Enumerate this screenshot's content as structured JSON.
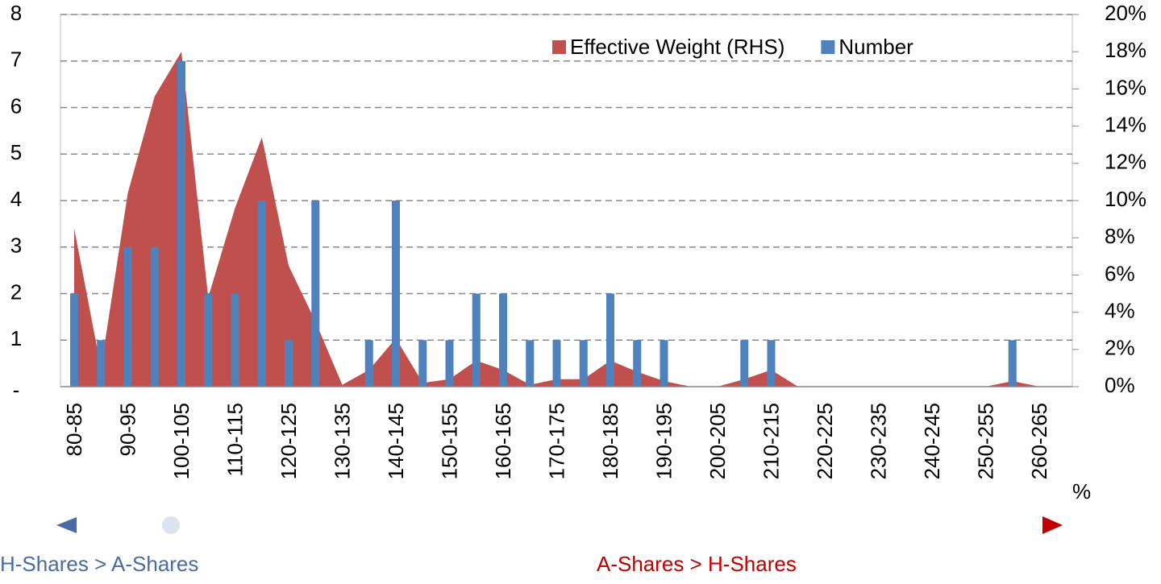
{
  "chart_data": {
    "type": "bar",
    "categories": [
      "80-85",
      null,
      "90-95",
      null,
      "100-105",
      null,
      "110-115",
      null,
      "120-125",
      null,
      "130-135",
      null,
      "140-145",
      null,
      "150-155",
      null,
      "160-165",
      null,
      "170-175",
      null,
      "180-185",
      null,
      "190-195",
      null,
      "200-205",
      null,
      "210-215",
      null,
      "220-225",
      null,
      "230-235",
      null,
      "240-245",
      null,
      "250-255",
      null,
      "260-265"
    ],
    "series": [
      {
        "name": "Effective Weight (RHS)",
        "color": "#c0504d",
        "type": "area",
        "axis": "y2",
        "values": [
          8.5,
          1,
          10.4,
          15.6,
          18,
          4.8,
          9.6,
          13.4,
          6.5,
          3.5,
          0.1,
          0.9,
          2.6,
          0.2,
          0.4,
          1.4,
          0.9,
          0.1,
          0.4,
          0.4,
          1.4,
          0.8,
          0.3,
          0,
          0,
          0.4,
          0.9,
          0,
          0,
          0,
          0,
          0,
          0,
          0,
          0,
          0.3,
          0
        ]
      },
      {
        "name": "Number",
        "color": "#4f81bd",
        "type": "bar",
        "axis": "y",
        "values": [
          2,
          1,
          3,
          3,
          7,
          2,
          2,
          4,
          1,
          4,
          0,
          1,
          4,
          1,
          1,
          2,
          2,
          1,
          1,
          1,
          2,
          1,
          1,
          0,
          0,
          1,
          1,
          0,
          0,
          0,
          0,
          0,
          0,
          0,
          0,
          1,
          0
        ]
      }
    ],
    "ylim": [
      0,
      8
    ],
    "yticks": [
      {
        "value": 0,
        "label": "-"
      },
      1,
      2,
      3,
      4,
      5,
      6,
      7,
      8
    ],
    "y2lim": [
      0,
      20
    ],
    "y2ticks": [
      {
        "value": 0,
        "label": "0%"
      },
      {
        "value": 2,
        "label": "2%"
      },
      {
        "value": 4,
        "label": "4%"
      },
      {
        "value": 6,
        "label": "6%"
      },
      {
        "value": 8,
        "label": "8%"
      },
      {
        "value": 10,
        "label": "10%"
      },
      {
        "value": 12,
        "label": "12%"
      },
      {
        "value": 14,
        "label": "14%"
      },
      {
        "value": 16,
        "label": "16%"
      },
      {
        "value": 18,
        "label": "18%"
      },
      {
        "value": 20,
        "label": "20%"
      }
    ],
    "grid": true,
    "legend": "top-right",
    "annotations": [
      "%",
      "H-Shares > A-Shares",
      "A-Shares > H-Shares"
    ]
  }
}
